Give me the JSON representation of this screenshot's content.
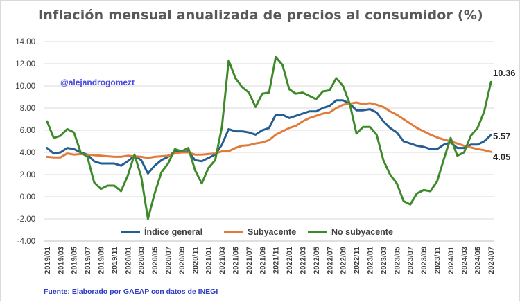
{
  "chart_data": {
    "type": "line",
    "title": "Inflación mensual anualizada de precios al consumidor (%)",
    "ylim": [
      -4,
      14
    ],
    "yticks": [
      -4,
      -2,
      0,
      2,
      4,
      6,
      8,
      10,
      12,
      14
    ],
    "ytick_labels": [
      "-4.00",
      "-2.00",
      "0.00",
      "2.00",
      "4.00",
      "6.00",
      "8.00",
      "10.00",
      "12.00",
      "14.00"
    ],
    "x": [
      "2019/01",
      "2019/02",
      "2019/03",
      "2019/04",
      "2019/05",
      "2019/06",
      "2019/07",
      "2019/08",
      "2019/09",
      "2019/10",
      "2019/11",
      "2019/12",
      "2020/01",
      "2020/02",
      "2020/03",
      "2020/04",
      "2020/05",
      "2020/06",
      "2020/07",
      "2020/08",
      "2020/09",
      "2020/10",
      "2020/11",
      "2020/12",
      "2021/01",
      "2021/02",
      "2021/03",
      "2021/04",
      "2021/05",
      "2021/06",
      "2021/07",
      "2021/08",
      "2021/09",
      "2021/10",
      "2021/11",
      "2021/12",
      "2022/01",
      "2022/02",
      "2022/03",
      "2022/04",
      "2022/05",
      "2022/06",
      "2022/07",
      "2022/08",
      "2022/09",
      "2022/10",
      "2022/11",
      "2022/12",
      "2023/01",
      "2023/02",
      "2023/03",
      "2023/04",
      "2023/05",
      "2023/06",
      "2023/07",
      "2023/08",
      "2023/09",
      "2023/10",
      "2023/11",
      "2023/12",
      "2024/01",
      "2024/02",
      "2024/03",
      "2024/04",
      "2024/05",
      "2024/06",
      "2024/07"
    ],
    "xtick_labels": [
      "2019/01",
      "2019/03",
      "2019/05",
      "2019/07",
      "2019/09",
      "2019/11",
      "2020/01",
      "2020/03",
      "2020/05",
      "2020/07",
      "2020/09",
      "2020/11",
      "2021/01",
      "2021/03",
      "2021/05",
      "2021/07",
      "2021/09",
      "2021/11",
      "2022/01",
      "2022/03",
      "2022/05",
      "2022/07",
      "2022/09",
      "2022/11",
      "2023/01",
      "2023/03",
      "2023/05",
      "2023/07",
      "2023/09",
      "2023/11",
      "2024/01",
      "2024/03",
      "2024/05",
      "2024/07"
    ],
    "series": [
      {
        "name": "Índice general",
        "color": "#255e91",
        "values": [
          4.4,
          3.9,
          4.0,
          4.4,
          4.3,
          4.0,
          3.8,
          3.2,
          3.0,
          3.0,
          3.0,
          2.8,
          3.2,
          3.7,
          3.3,
          2.1,
          2.8,
          3.3,
          3.6,
          4.1,
          4.0,
          4.1,
          3.3,
          3.2,
          3.5,
          3.8,
          4.7,
          6.1,
          5.9,
          5.9,
          5.8,
          5.6,
          6.0,
          6.2,
          7.4,
          7.4,
          7.1,
          7.3,
          7.5,
          7.7,
          7.7,
          8.0,
          8.2,
          8.7,
          8.7,
          8.4,
          7.8,
          7.8,
          7.9,
          7.6,
          6.8,
          6.2,
          5.8,
          5.0,
          4.8,
          4.6,
          4.5,
          4.3,
          4.3,
          4.7,
          4.9,
          4.4,
          4.4,
          4.7,
          4.7,
          5.0,
          5.57
        ],
        "end_label": "5.57"
      },
      {
        "name": "Subyacente",
        "color": "#e07b39",
        "values": [
          3.6,
          3.55,
          3.55,
          3.9,
          3.8,
          3.85,
          3.8,
          3.75,
          3.7,
          3.65,
          3.6,
          3.6,
          3.7,
          3.65,
          3.6,
          3.5,
          3.6,
          3.65,
          3.7,
          3.9,
          4.0,
          4.0,
          3.8,
          3.8,
          3.85,
          3.9,
          4.1,
          4.1,
          4.4,
          4.6,
          4.65,
          4.8,
          4.9,
          5.1,
          5.6,
          5.9,
          6.2,
          6.4,
          6.8,
          7.1,
          7.3,
          7.5,
          7.6,
          8.0,
          8.3,
          8.4,
          8.5,
          8.35,
          8.45,
          8.3,
          8.1,
          7.7,
          7.4,
          7.0,
          6.6,
          6.2,
          5.9,
          5.6,
          5.35,
          5.15,
          5.0,
          4.8,
          4.6,
          4.45,
          4.3,
          4.2,
          4.05
        ],
        "end_label": "4.05"
      },
      {
        "name": "No subyacente",
        "color": "#3e8a2b",
        "values": [
          6.8,
          5.3,
          5.5,
          6.1,
          5.8,
          4.0,
          3.6,
          1.3,
          0.7,
          1.0,
          1.0,
          0.5,
          1.9,
          3.8,
          1.8,
          -2.0,
          0.3,
          2.2,
          3.0,
          4.3,
          4.1,
          4.4,
          2.4,
          1.2,
          2.6,
          3.3,
          6.3,
          12.3,
          10.7,
          9.9,
          9.4,
          8.1,
          9.3,
          9.4,
          12.6,
          11.9,
          9.7,
          9.3,
          9.4,
          9.1,
          8.8,
          9.5,
          9.6,
          10.7,
          10.0,
          8.4,
          5.7,
          6.3,
          6.3,
          5.6,
          3.3,
          2.0,
          1.2,
          -0.4,
          -0.7,
          0.3,
          0.6,
          0.5,
          1.4,
          3.4,
          5.3,
          3.7,
          4.0,
          5.5,
          6.2,
          7.7,
          10.36
        ],
        "end_label": "10.36"
      }
    ],
    "legend_position": "bottom-inside",
    "grid": true
  },
  "annotation": "@alejandrogomezt",
  "source": "Fuente: Elaborado por GAEAP con datos de INEGI"
}
